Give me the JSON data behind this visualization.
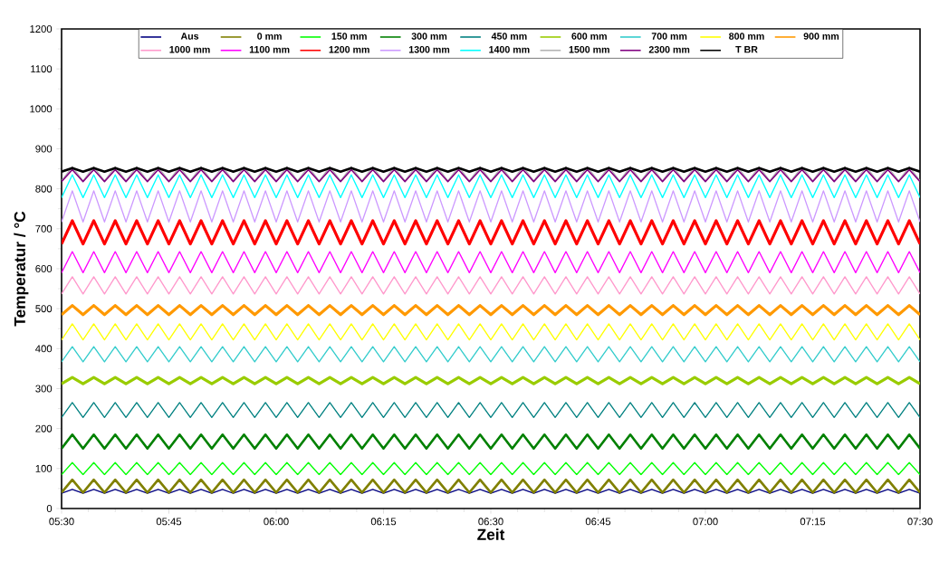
{
  "chart_data": {
    "type": "line",
    "xlabel": "Zeit",
    "ylabel": "Temperatur / °C",
    "xlim": [
      5.5,
      7.5
    ],
    "ylim": [
      0,
      1200
    ],
    "xticks": [
      {
        "value": 5.5,
        "label": "05:30"
      },
      {
        "value": 5.75,
        "label": "05:45"
      },
      {
        "value": 6,
        "label": "06:00"
      },
      {
        "value": 6.25,
        "label": "06:15"
      },
      {
        "value": 6.5,
        "label": "06:30"
      },
      {
        "value": 6.75,
        "label": "06:45"
      },
      {
        "value": 7,
        "label": "07:00"
      },
      {
        "value": 7.25,
        "label": "07:15"
      },
      {
        "value": 7.5,
        "label": "07:30"
      }
    ],
    "yticks": [
      0,
      100,
      200,
      300,
      400,
      500,
      600,
      700,
      800,
      900,
      1000,
      1100,
      1200
    ],
    "grid": false,
    "legend": "top",
    "marker": "none",
    "line_style": "solid",
    "x": [
      5.5,
      5.525,
      5.55,
      5.575,
      5.6,
      5.625,
      5.65,
      5.675,
      5.7,
      5.725,
      5.75,
      5.775,
      5.8,
      5.825,
      5.85,
      5.875,
      5.9,
      5.925,
      5.95,
      5.975,
      6,
      6.025,
      6.05,
      6.075,
      6.1,
      6.125,
      6.15,
      6.175,
      6.2,
      6.225,
      6.25,
      6.275,
      6.3,
      6.325,
      6.35,
      6.375,
      6.4,
      6.425,
      6.45,
      6.475,
      6.5,
      6.525,
      6.55,
      6.575,
      6.6,
      6.625,
      6.65,
      6.675,
      6.7,
      6.725,
      6.75,
      6.775,
      6.8,
      6.825,
      6.85,
      6.875,
      6.9,
      6.925,
      6.95,
      6.975,
      7,
      7.025,
      7.05,
      7.075,
      7.1,
      7.125,
      7.15,
      7.175,
      7.2,
      7.225,
      7.25,
      7.275,
      7.3,
      7.325,
      7.35,
      7.375,
      7.4,
      7.425,
      7.45,
      7.475,
      7.5
    ],
    "series": [
      {
        "name": "Aus",
        "color": "#000080",
        "values": [
          38,
          48,
          38,
          48,
          38,
          48,
          38,
          48,
          38,
          48,
          38,
          48,
          38,
          48,
          38,
          48,
          38,
          48,
          38,
          48,
          38,
          48,
          38,
          48,
          38,
          48,
          38,
          48,
          38,
          48,
          38,
          48,
          38,
          48,
          38,
          48,
          38,
          48,
          38,
          48,
          38,
          48,
          38,
          48,
          38,
          48,
          38,
          48,
          38,
          48,
          38,
          48,
          38,
          48,
          38,
          48,
          38,
          48,
          38,
          48,
          38,
          48,
          38,
          48,
          38,
          48,
          38,
          48,
          38,
          48,
          38,
          48,
          38,
          48,
          38,
          48,
          38,
          48,
          38,
          48,
          38
        ]
      },
      {
        "name": "0 mm",
        "color": "#808000",
        "values": [
          40,
          72,
          40,
          72,
          40,
          72,
          40,
          72,
          40,
          72,
          40,
          72,
          40,
          72,
          40,
          72,
          40,
          72,
          40,
          72,
          40,
          72,
          40,
          72,
          40,
          72,
          40,
          72,
          40,
          72,
          40,
          72,
          40,
          72,
          40,
          72,
          40,
          72,
          40,
          72,
          40,
          72,
          40,
          72,
          40,
          72,
          40,
          72,
          40,
          72,
          40,
          72,
          40,
          72,
          40,
          72,
          40,
          72,
          40,
          72,
          40,
          72,
          40,
          72,
          40,
          72,
          40,
          72,
          40,
          72,
          40,
          72,
          40,
          72,
          40,
          72,
          40,
          72,
          40,
          72,
          40
        ]
      },
      {
        "name": "150 mm",
        "color": "#00ff00",
        "values": [
          85,
          115,
          85,
          115,
          85,
          115,
          85,
          115,
          85,
          115,
          85,
          115,
          85,
          115,
          85,
          115,
          85,
          115,
          85,
          115,
          85,
          115,
          85,
          115,
          85,
          115,
          85,
          115,
          85,
          115,
          85,
          115,
          85,
          115,
          85,
          115,
          85,
          115,
          85,
          115,
          85,
          115,
          85,
          115,
          85,
          115,
          85,
          115,
          85,
          115,
          85,
          115,
          85,
          115,
          85,
          115,
          85,
          115,
          85,
          115,
          85,
          115,
          85,
          115,
          85,
          115,
          85,
          115,
          85,
          115,
          85,
          115,
          85,
          115,
          85,
          115,
          85,
          115,
          85,
          115,
          85
        ]
      },
      {
        "name": "300 mm",
        "color": "#008000",
        "values": [
          150,
          185,
          150,
          185,
          150,
          185,
          150,
          185,
          150,
          185,
          150,
          185,
          150,
          185,
          150,
          185,
          150,
          185,
          150,
          185,
          150,
          185,
          150,
          185,
          150,
          185,
          150,
          185,
          150,
          185,
          150,
          185,
          150,
          185,
          150,
          185,
          150,
          185,
          150,
          185,
          150,
          185,
          150,
          185,
          150,
          185,
          150,
          185,
          150,
          185,
          150,
          185,
          150,
          185,
          150,
          185,
          150,
          185,
          150,
          185,
          150,
          185,
          150,
          185,
          150,
          185,
          150,
          185,
          150,
          185,
          150,
          185,
          150,
          185,
          150,
          185,
          150,
          185,
          150,
          185,
          150
        ]
      },
      {
        "name": "450 mm",
        "color": "#008080",
        "values": [
          228,
          265,
          228,
          265,
          228,
          265,
          228,
          265,
          228,
          265,
          228,
          265,
          228,
          265,
          228,
          265,
          228,
          265,
          228,
          265,
          228,
          265,
          228,
          265,
          228,
          265,
          228,
          265,
          228,
          265,
          228,
          265,
          228,
          265,
          228,
          265,
          228,
          265,
          228,
          265,
          228,
          265,
          228,
          265,
          228,
          265,
          228,
          265,
          228,
          265,
          228,
          265,
          228,
          265,
          228,
          265,
          228,
          265,
          228,
          265,
          228,
          265,
          228,
          265,
          228,
          265,
          228,
          265,
          228,
          265,
          228,
          265,
          228,
          265,
          228,
          265,
          228,
          265,
          228,
          265,
          228
        ]
      },
      {
        "name": "600 mm",
        "color": "#99cc00",
        "values": [
          312,
          328,
          312,
          328,
          312,
          328,
          312,
          328,
          312,
          328,
          312,
          328,
          312,
          328,
          312,
          328,
          312,
          328,
          312,
          328,
          312,
          328,
          312,
          328,
          312,
          328,
          312,
          328,
          312,
          328,
          312,
          328,
          312,
          328,
          312,
          328,
          312,
          328,
          312,
          328,
          312,
          328,
          312,
          328,
          312,
          328,
          312,
          328,
          312,
          328,
          312,
          328,
          312,
          328,
          312,
          328,
          312,
          328,
          312,
          328,
          312,
          328,
          312,
          328,
          312,
          328,
          312,
          328,
          312,
          328,
          312,
          328,
          312,
          328,
          312,
          328,
          312,
          328,
          312,
          328,
          312
        ]
      },
      {
        "name": "700 mm",
        "color": "#33cccc",
        "values": [
          367,
          405,
          367,
          405,
          367,
          405,
          367,
          405,
          367,
          405,
          367,
          405,
          367,
          405,
          367,
          405,
          367,
          405,
          367,
          405,
          367,
          405,
          367,
          405,
          367,
          405,
          367,
          405,
          367,
          405,
          367,
          405,
          367,
          405,
          367,
          405,
          367,
          405,
          367,
          405,
          367,
          405,
          367,
          405,
          367,
          405,
          367,
          405,
          367,
          405,
          367,
          405,
          367,
          405,
          367,
          405,
          367,
          405,
          367,
          405,
          367,
          405,
          367,
          405,
          367,
          405,
          367,
          405,
          367,
          405,
          367,
          405,
          367,
          405,
          367,
          405,
          367,
          405,
          367,
          405,
          367
        ]
      },
      {
        "name": "800 mm",
        "color": "#ffff00",
        "values": [
          422,
          462,
          422,
          462,
          422,
          462,
          422,
          462,
          422,
          462,
          422,
          462,
          422,
          462,
          422,
          462,
          422,
          462,
          422,
          462,
          422,
          462,
          422,
          462,
          422,
          462,
          422,
          462,
          422,
          462,
          422,
          462,
          422,
          462,
          422,
          462,
          422,
          462,
          422,
          462,
          422,
          462,
          422,
          462,
          422,
          462,
          422,
          462,
          422,
          462,
          422,
          462,
          422,
          462,
          422,
          462,
          422,
          462,
          422,
          462,
          422,
          462,
          422,
          462,
          422,
          462,
          422,
          462,
          422,
          462,
          422,
          462,
          422,
          462,
          422,
          462,
          422,
          462,
          422,
          462,
          422
        ]
      },
      {
        "name": "900 mm",
        "color": "#ff9900",
        "values": [
          485,
          508,
          485,
          508,
          485,
          508,
          485,
          508,
          485,
          508,
          485,
          508,
          485,
          508,
          485,
          508,
          485,
          508,
          485,
          508,
          485,
          508,
          485,
          508,
          485,
          508,
          485,
          508,
          485,
          508,
          485,
          508,
          485,
          508,
          485,
          508,
          485,
          508,
          485,
          508,
          485,
          508,
          485,
          508,
          485,
          508,
          485,
          508,
          485,
          508,
          485,
          508,
          485,
          508,
          485,
          508,
          485,
          508,
          485,
          508,
          485,
          508,
          485,
          508,
          485,
          508,
          485,
          508,
          485,
          508,
          485,
          508,
          485,
          508,
          485,
          508,
          485,
          508,
          485,
          508,
          485
        ]
      },
      {
        "name": "1000 mm",
        "color": "#ff99cc",
        "values": [
          537,
          580,
          537,
          580,
          537,
          580,
          537,
          580,
          537,
          580,
          537,
          580,
          537,
          580,
          537,
          580,
          537,
          580,
          537,
          580,
          537,
          580,
          537,
          580,
          537,
          580,
          537,
          580,
          537,
          580,
          537,
          580,
          537,
          580,
          537,
          580,
          537,
          580,
          537,
          580,
          537,
          580,
          537,
          580,
          537,
          580,
          537,
          580,
          537,
          580,
          537,
          580,
          537,
          580,
          537,
          580,
          537,
          580,
          537,
          580,
          537,
          580,
          537,
          580,
          537,
          580,
          537,
          580,
          537,
          580,
          537,
          580,
          537,
          580,
          537,
          580,
          537,
          580,
          537,
          580,
          537
        ]
      },
      {
        "name": "1100 mm",
        "color": "#ff00ff",
        "values": [
          590,
          643,
          590,
          643,
          590,
          643,
          590,
          643,
          590,
          643,
          590,
          643,
          590,
          643,
          590,
          643,
          590,
          643,
          590,
          643,
          590,
          643,
          590,
          643,
          590,
          643,
          590,
          643,
          590,
          643,
          590,
          643,
          590,
          643,
          590,
          643,
          590,
          643,
          590,
          643,
          590,
          643,
          590,
          643,
          590,
          643,
          590,
          643,
          590,
          643,
          590,
          643,
          590,
          643,
          590,
          643,
          590,
          643,
          590,
          643,
          590,
          643,
          590,
          643,
          590,
          643,
          590,
          643,
          590,
          643,
          590,
          643,
          590,
          643,
          590,
          643,
          590,
          643,
          590,
          643,
          590
        ]
      },
      {
        "name": "1200 mm",
        "color": "#ff0000",
        "values": [
          662,
          720,
          662,
          720,
          662,
          720,
          662,
          720,
          662,
          720,
          662,
          720,
          662,
          720,
          662,
          720,
          662,
          720,
          662,
          720,
          662,
          720,
          662,
          720,
          662,
          720,
          662,
          720,
          662,
          720,
          662,
          720,
          662,
          720,
          662,
          720,
          662,
          720,
          662,
          720,
          662,
          720,
          662,
          720,
          662,
          720,
          662,
          720,
          662,
          720,
          662,
          720,
          662,
          720,
          662,
          720,
          662,
          720,
          662,
          720,
          662,
          720,
          662,
          720,
          662,
          720,
          662,
          720,
          662,
          720,
          662,
          720,
          662,
          720,
          662,
          720,
          662,
          720,
          662,
          720,
          662
        ]
      },
      {
        "name": "1300 mm",
        "color": "#cc99ff",
        "values": [
          717,
          795,
          717,
          795,
          717,
          795,
          717,
          795,
          717,
          795,
          717,
          795,
          717,
          795,
          717,
          795,
          717,
          795,
          717,
          795,
          717,
          795,
          717,
          795,
          717,
          795,
          717,
          795,
          717,
          795,
          717,
          795,
          717,
          795,
          717,
          795,
          717,
          795,
          717,
          795,
          717,
          795,
          717,
          795,
          717,
          795,
          717,
          795,
          717,
          795,
          717,
          795,
          717,
          795,
          717,
          795,
          717,
          795,
          717,
          795,
          717,
          795,
          717,
          795,
          717,
          795,
          717,
          795,
          717,
          795,
          717,
          795,
          717,
          795,
          717,
          795,
          717,
          795,
          717,
          795,
          717
        ]
      },
      {
        "name": "1400 mm",
        "color": "#00ffff",
        "values": [
          778,
          835,
          778,
          835,
          778,
          835,
          778,
          835,
          778,
          835,
          778,
          835,
          778,
          835,
          778,
          835,
          778,
          835,
          778,
          835,
          778,
          835,
          778,
          835,
          778,
          835,
          778,
          835,
          778,
          835,
          778,
          835,
          778,
          835,
          778,
          835,
          778,
          835,
          778,
          835,
          778,
          835,
          778,
          835,
          778,
          835,
          778,
          835,
          778,
          835,
          778,
          835,
          778,
          835,
          778,
          835,
          778,
          835,
          778,
          835,
          778,
          835,
          778,
          835,
          778,
          835,
          778,
          835,
          778,
          835,
          778,
          835,
          778,
          835,
          778,
          835,
          778,
          835,
          778,
          835,
          778
        ]
      },
      {
        "name": "1500 mm",
        "color": "#b2b2b2",
        "values": [
          820,
          855,
          820,
          855,
          820,
          855,
          820,
          855,
          820,
          855,
          820,
          855,
          820,
          855,
          820,
          855,
          820,
          855,
          820,
          855,
          820,
          855,
          820,
          855,
          820,
          855,
          820,
          855,
          820,
          855,
          820,
          855,
          820,
          855,
          820,
          855,
          820,
          855,
          820,
          855,
          820,
          855,
          820,
          855,
          820,
          855,
          820,
          855,
          820,
          855,
          820,
          855,
          820,
          855,
          820,
          855,
          820,
          855,
          820,
          855,
          820,
          855,
          820,
          855,
          820,
          855,
          820,
          855,
          820,
          855,
          820,
          855,
          820,
          855,
          820,
          855,
          820,
          855,
          820,
          855,
          820
        ]
      },
      {
        "name": "2300 mm",
        "color": "#800080",
        "values": [
          818,
          848,
          818,
          848,
          818,
          848,
          818,
          848,
          818,
          848,
          818,
          848,
          818,
          848,
          818,
          848,
          818,
          848,
          818,
          848,
          818,
          848,
          818,
          848,
          818,
          848,
          818,
          848,
          818,
          848,
          818,
          848,
          818,
          848,
          818,
          848,
          818,
          848,
          818,
          848,
          818,
          848,
          818,
          848,
          818,
          848,
          818,
          848,
          818,
          848,
          818,
          848,
          818,
          848,
          818,
          848,
          818,
          848,
          818,
          848,
          818,
          848,
          818,
          848,
          818,
          848,
          818,
          848,
          818,
          848,
          818,
          848,
          818,
          848,
          818,
          848,
          818,
          848,
          818,
          848,
          818
        ]
      },
      {
        "name": "T BR",
        "color": "#000000",
        "values": [
          843,
          852,
          843,
          852,
          843,
          852,
          843,
          852,
          843,
          852,
          843,
          852,
          843,
          852,
          843,
          852,
          843,
          852,
          843,
          852,
          843,
          852,
          843,
          852,
          843,
          852,
          843,
          852,
          843,
          852,
          843,
          852,
          843,
          852,
          843,
          852,
          843,
          852,
          843,
          852,
          843,
          852,
          843,
          852,
          843,
          852,
          843,
          852,
          843,
          852,
          843,
          852,
          843,
          852,
          843,
          852,
          843,
          852,
          843,
          852,
          843,
          852,
          843,
          852,
          843,
          852,
          843,
          852,
          843,
          852,
          843,
          852,
          843,
          852,
          843,
          852,
          843,
          852,
          843,
          852,
          843
        ]
      }
    ]
  }
}
